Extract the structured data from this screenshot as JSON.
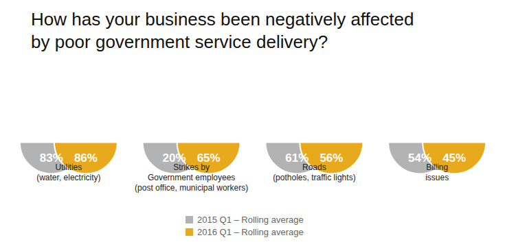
{
  "chart_data": {
    "type": "semicircle",
    "title": "How has your business been negatively affected\nby poor government service delivery?",
    "categories": [
      "Utilities\n(water, electricity)",
      "Strikes by\nGovernment employees\n(post office, municipal workers)",
      "Roads\n(potholes, traffic lights)",
      "Billing\nissues"
    ],
    "series": [
      {
        "name": "2015 Q1 – Rolling average",
        "color": "#b3b3b3",
        "values": [
          83,
          20,
          61,
          54
        ],
        "value_labels": [
          "83%",
          "20%",
          "61%",
          "54%"
        ]
      },
      {
        "name": "2016 Q1 – Rolling average",
        "color": "#e9a91c",
        "values": [
          86,
          65,
          56,
          45
        ],
        "value_labels": [
          "86%",
          "65%",
          "56%",
          "45%"
        ]
      }
    ],
    "data_labels": true,
    "tick_labels": false,
    "legend": "bottom"
  }
}
